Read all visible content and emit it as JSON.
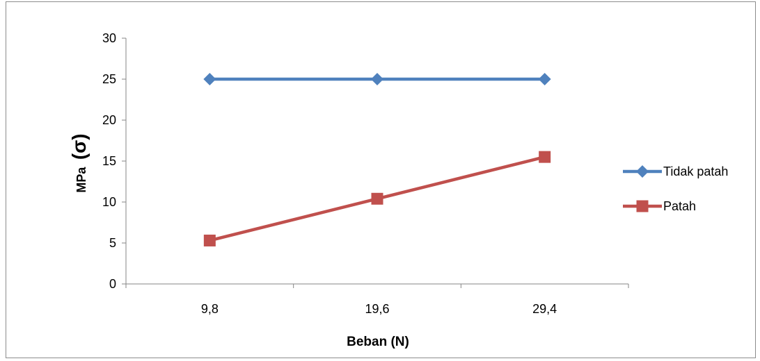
{
  "chart_data": {
    "type": "line",
    "categories": [
      "9,8",
      "19,6",
      "29,4"
    ],
    "series": [
      {
        "name": "Tidak patah",
        "values": [
          25,
          25,
          25
        ],
        "color": "#4F81BD",
        "marker": "diamond"
      },
      {
        "name": "Patah",
        "values": [
          5.3,
          10.4,
          15.5
        ],
        "color": "#C0504D",
        "marker": "square"
      }
    ],
    "title": "",
    "xlabel": "Beban (N)",
    "ylabel_unit": "MPa",
    "ylabel_symbol": "(σ)",
    "ylim": [
      0,
      30
    ],
    "yticks": [
      "0",
      "5",
      "10",
      "15",
      "20",
      "25",
      "30"
    ],
    "grid": false,
    "legend_position": "right"
  }
}
